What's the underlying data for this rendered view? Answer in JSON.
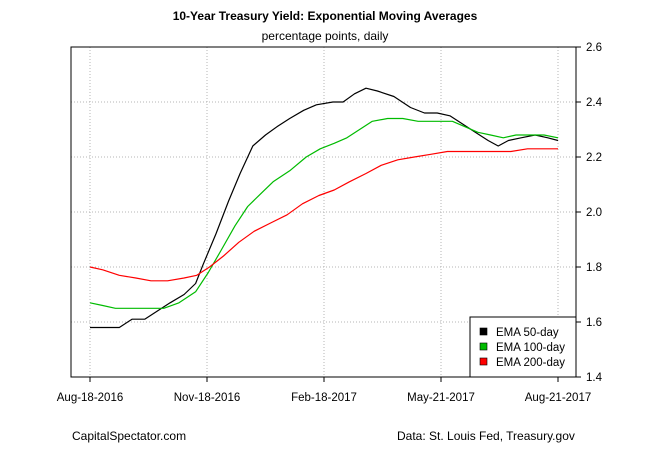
{
  "chart_data": {
    "type": "line",
    "title": "10-Year Treasury Yield: Exponential Moving Averages",
    "subtitle": "percentage points, daily",
    "x_tick_labels": [
      "Aug-18-2016",
      "Nov-18-2016",
      "Feb-18-2017",
      "May-21-2017",
      "Aug-21-2017"
    ],
    "x_tick_dates": [
      "2016-08-18",
      "2016-11-18",
      "2017-02-18",
      "2017-05-21",
      "2017-08-21"
    ],
    "x_range": [
      "2016-08-18",
      "2017-08-21"
    ],
    "y_ticks": [
      1.4,
      1.6,
      1.8,
      2.0,
      2.2,
      2.4,
      2.6
    ],
    "y_tick_labels": [
      "1.4",
      "1.6",
      "1.8",
      "2.0",
      "2.2",
      "2.4",
      "2.6"
    ],
    "ylim": [
      1.4,
      2.6
    ],
    "y_axis_side": "right",
    "grid": true,
    "legend_position": "bottom-right",
    "series": [
      {
        "name": "EMA 50-day",
        "color": "#000000",
        "points": [
          [
            "2016-08-18",
            1.58
          ],
          [
            "2016-09-01",
            1.58
          ],
          [
            "2016-09-10",
            1.58
          ],
          [
            "2016-09-20",
            1.61
          ],
          [
            "2016-09-30",
            1.61
          ],
          [
            "2016-10-10",
            1.64
          ],
          [
            "2016-10-20",
            1.67
          ],
          [
            "2016-10-31",
            1.7
          ],
          [
            "2016-11-09",
            1.74
          ],
          [
            "2016-11-15",
            1.81
          ],
          [
            "2016-11-25",
            1.92
          ],
          [
            "2016-12-05",
            2.04
          ],
          [
            "2016-12-14",
            2.14
          ],
          [
            "2016-12-24",
            2.24
          ],
          [
            "2017-01-03",
            2.28
          ],
          [
            "2017-01-12",
            2.31
          ],
          [
            "2017-01-22",
            2.34
          ],
          [
            "2017-02-02",
            2.37
          ],
          [
            "2017-02-12",
            2.39
          ],
          [
            "2017-02-25",
            2.4
          ],
          [
            "2017-03-05",
            2.4
          ],
          [
            "2017-03-14",
            2.43
          ],
          [
            "2017-03-23",
            2.45
          ],
          [
            "2017-04-01",
            2.44
          ],
          [
            "2017-04-14",
            2.42
          ],
          [
            "2017-04-27",
            2.38
          ],
          [
            "2017-05-08",
            2.36
          ],
          [
            "2017-05-18",
            2.36
          ],
          [
            "2017-05-28",
            2.35
          ],
          [
            "2017-06-07",
            2.32
          ],
          [
            "2017-06-17",
            2.29
          ],
          [
            "2017-06-27",
            2.26
          ],
          [
            "2017-07-05",
            2.24
          ],
          [
            "2017-07-13",
            2.26
          ],
          [
            "2017-07-23",
            2.27
          ],
          [
            "2017-08-03",
            2.28
          ],
          [
            "2017-08-13",
            2.27
          ],
          [
            "2017-08-21",
            2.26
          ]
        ]
      },
      {
        "name": "EMA 100-day",
        "color": "#00bb00",
        "points": [
          [
            "2016-08-18",
            1.67
          ],
          [
            "2016-08-28",
            1.66
          ],
          [
            "2016-09-07",
            1.65
          ],
          [
            "2016-09-20",
            1.65
          ],
          [
            "2016-10-02",
            1.65
          ],
          [
            "2016-10-15",
            1.65
          ],
          [
            "2016-10-27",
            1.67
          ],
          [
            "2016-11-09",
            1.71
          ],
          [
            "2016-11-19",
            1.78
          ],
          [
            "2016-11-29",
            1.86
          ],
          [
            "2016-12-10",
            1.95
          ],
          [
            "2016-12-20",
            2.02
          ],
          [
            "2016-12-31",
            2.07
          ],
          [
            "2017-01-09",
            2.11
          ],
          [
            "2017-01-22",
            2.15
          ],
          [
            "2017-02-04",
            2.2
          ],
          [
            "2017-02-15",
            2.23
          ],
          [
            "2017-02-26",
            2.25
          ],
          [
            "2017-03-08",
            2.27
          ],
          [
            "2017-03-18",
            2.3
          ],
          [
            "2017-03-28",
            2.33
          ],
          [
            "2017-04-09",
            2.34
          ],
          [
            "2017-04-21",
            2.34
          ],
          [
            "2017-05-03",
            2.33
          ],
          [
            "2017-05-15",
            2.33
          ],
          [
            "2017-05-30",
            2.33
          ],
          [
            "2017-06-09",
            2.31
          ],
          [
            "2017-06-19",
            2.29
          ],
          [
            "2017-06-29",
            2.28
          ],
          [
            "2017-07-09",
            2.27
          ],
          [
            "2017-07-19",
            2.28
          ],
          [
            "2017-07-30",
            2.28
          ],
          [
            "2017-08-10",
            2.28
          ],
          [
            "2017-08-21",
            2.27
          ]
        ]
      },
      {
        "name": "EMA 200-day",
        "color": "#ff0000",
        "points": [
          [
            "2016-08-18",
            1.8
          ],
          [
            "2016-08-28",
            1.79
          ],
          [
            "2016-09-10",
            1.77
          ],
          [
            "2016-09-23",
            1.76
          ],
          [
            "2016-10-05",
            1.75
          ],
          [
            "2016-10-18",
            1.75
          ],
          [
            "2016-10-31",
            1.76
          ],
          [
            "2016-11-10",
            1.77
          ],
          [
            "2016-11-20",
            1.8
          ],
          [
            "2016-12-01",
            1.84
          ],
          [
            "2016-12-13",
            1.89
          ],
          [
            "2016-12-25",
            1.93
          ],
          [
            "2017-01-07",
            1.96
          ],
          [
            "2017-01-20",
            1.99
          ],
          [
            "2017-02-01",
            2.03
          ],
          [
            "2017-02-14",
            2.06
          ],
          [
            "2017-02-26",
            2.08
          ],
          [
            "2017-03-10",
            2.11
          ],
          [
            "2017-03-23",
            2.14
          ],
          [
            "2017-04-04",
            2.17
          ],
          [
            "2017-04-17",
            2.19
          ],
          [
            "2017-04-30",
            2.2
          ],
          [
            "2017-05-13",
            2.21
          ],
          [
            "2017-05-26",
            2.22
          ],
          [
            "2017-06-08",
            2.22
          ],
          [
            "2017-06-20",
            2.22
          ],
          [
            "2017-07-03",
            2.22
          ],
          [
            "2017-07-15",
            2.22
          ],
          [
            "2017-07-28",
            2.23
          ],
          [
            "2017-08-10",
            2.23
          ],
          [
            "2017-08-21",
            2.23
          ]
        ]
      }
    ]
  },
  "footer": {
    "left": "CapitalSpectator.com",
    "right": "Data: St. Louis Fed, Treasury.gov"
  }
}
